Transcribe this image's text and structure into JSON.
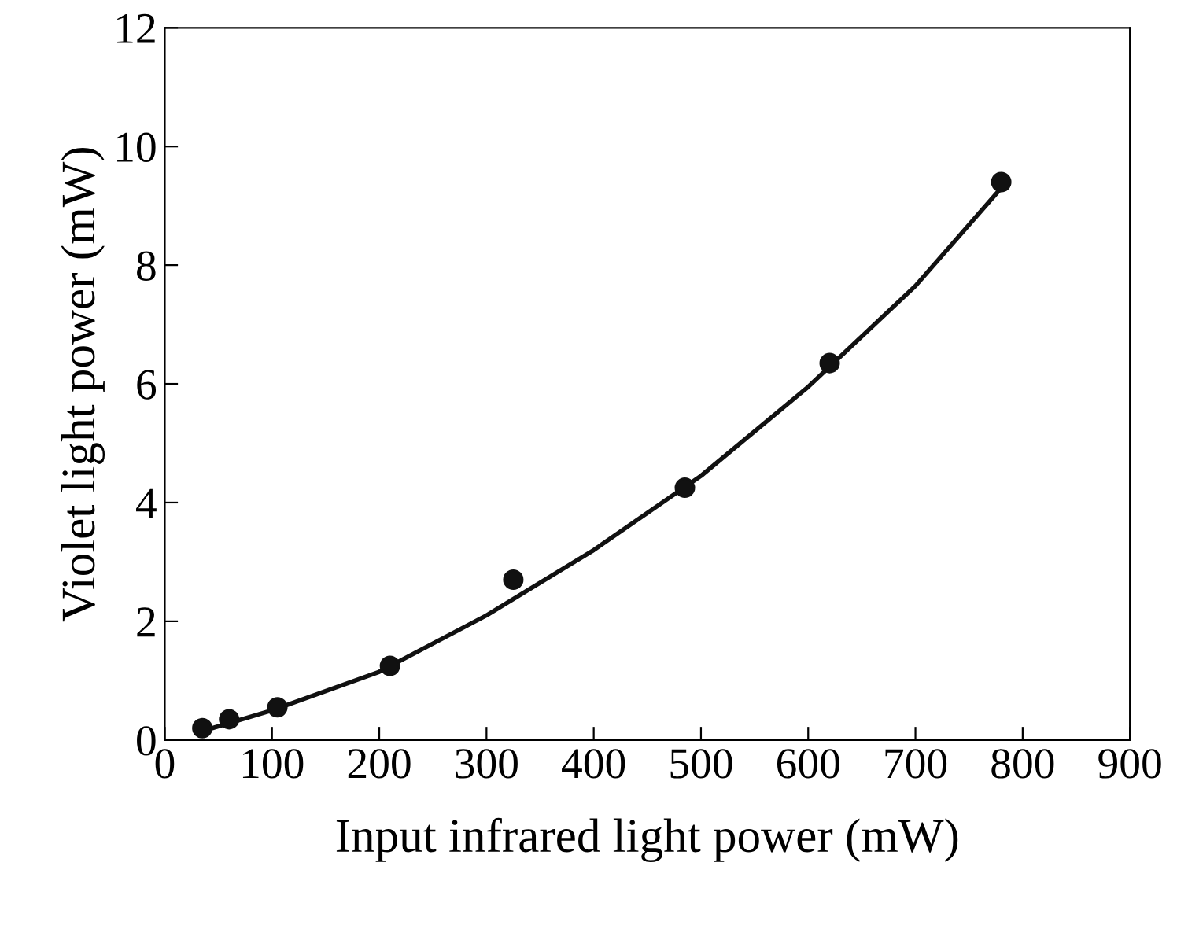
{
  "chart_data": {
    "type": "scatter",
    "xlabel": "Input infrared light power (mW)",
    "ylabel": "Violet light power (mW)",
    "xlim": [
      0,
      900
    ],
    "ylim": [
      0,
      12
    ],
    "xticks": [
      0,
      100,
      200,
      300,
      400,
      500,
      600,
      700,
      800,
      900
    ],
    "yticks": [
      0,
      2,
      4,
      6,
      8,
      10,
      12
    ],
    "grid": false,
    "legend": false,
    "series": [
      {
        "type": "scatter",
        "color": "#111111",
        "marker": "circle",
        "x": [
          35,
          60,
          105,
          210,
          325,
          485,
          620,
          780
        ],
        "values": [
          0.2,
          0.35,
          0.55,
          1.25,
          2.7,
          4.25,
          6.35,
          9.4
        ]
      },
      {
        "type": "line",
        "color": "#111111",
        "line_style": "solid",
        "x": [
          35,
          100,
          200,
          300,
          400,
          500,
          600,
          700,
          780
        ],
        "values": [
          0.15,
          0.5,
          1.15,
          2.1,
          3.2,
          4.45,
          5.95,
          7.65,
          9.3
        ]
      }
    ]
  }
}
